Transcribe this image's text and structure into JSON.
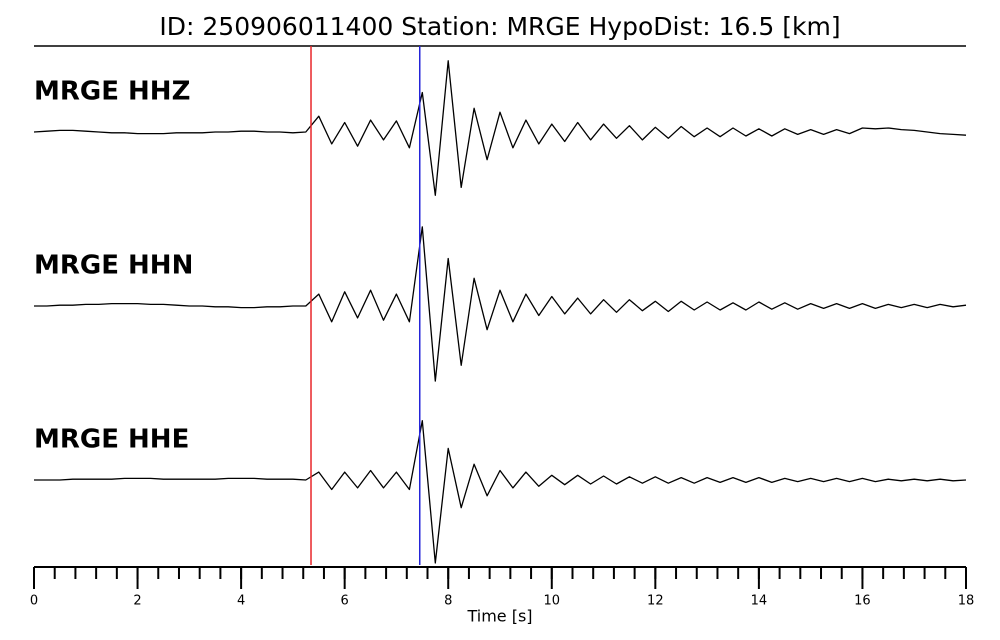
{
  "chart_data": {
    "type": "line",
    "title": "ID: 250906011400   Station: MRGE   HypoDist:    16.5 [km]",
    "xlabel": "Time [s]",
    "xlim": [
      0,
      18
    ],
    "xticks": [
      0,
      2,
      4,
      6,
      8,
      10,
      12,
      14,
      16,
      18
    ],
    "xminor": [
      0,
      0.4,
      0.8,
      1.2,
      1.6,
      2,
      2.4,
      2.8,
      3.2,
      3.6,
      4,
      4.4,
      4.8,
      5.2,
      5.6,
      6,
      6.4,
      6.8,
      7.2,
      7.6,
      8,
      8.4,
      8.8,
      9.2,
      9.6,
      10,
      10.4,
      10.8,
      11.2,
      11.6,
      12,
      12.4,
      12.8,
      13.2,
      13.6,
      14,
      14.4,
      14.8,
      15.2,
      15.6,
      16,
      16.4,
      16.8,
      17.2,
      17.6,
      18
    ],
    "ylim": [
      -1.1,
      1.1
    ],
    "vlines": [
      {
        "x": 5.35,
        "color": "#e8262a"
      },
      {
        "x": 7.45,
        "color": "#2424d8"
      }
    ],
    "label_color": "#4a9a00",
    "x": [
      0,
      0.25,
      0.5,
      0.75,
      1,
      1.25,
      1.5,
      1.75,
      2,
      2.25,
      2.5,
      2.75,
      3,
      3.25,
      3.5,
      3.75,
      4,
      4.25,
      4.5,
      4.75,
      5,
      5.25,
      5.5,
      5.75,
      6,
      6.25,
      6.5,
      6.75,
      7,
      7.25,
      7.5,
      7.75,
      8,
      8.25,
      8.5,
      8.75,
      9,
      9.25,
      9.5,
      9.75,
      10,
      10.25,
      10.5,
      10.75,
      11,
      11.25,
      11.5,
      11.75,
      12,
      12.25,
      12.5,
      12.75,
      13,
      13.25,
      13.5,
      13.75,
      14,
      14.25,
      14.5,
      14.75,
      15,
      15.25,
      15.5,
      15.75,
      16,
      16.25,
      16.5,
      16.75,
      17,
      17.25,
      17.5,
      17.75,
      18
    ],
    "series": [
      {
        "name": "MRGE HHZ",
        "color": "#000000",
        "values": [
          0,
          0.01,
          0.02,
          0.02,
          0.01,
          0,
          -0.01,
          -0.01,
          -0.02,
          -0.02,
          -0.02,
          -0.01,
          -0.01,
          -0.01,
          0,
          0,
          0.01,
          0.01,
          0,
          0,
          -0.01,
          0,
          0.2,
          -0.15,
          0.12,
          -0.18,
          0.15,
          -0.1,
          0.14,
          -0.2,
          0.5,
          -0.8,
          0.9,
          -0.7,
          0.3,
          -0.35,
          0.25,
          -0.2,
          0.15,
          -0.15,
          0.1,
          -0.12,
          0.12,
          -0.1,
          0.1,
          -0.08,
          0.08,
          -0.1,
          0.06,
          -0.08,
          0.07,
          -0.06,
          0.05,
          -0.06,
          0.05,
          -0.05,
          0.04,
          -0.05,
          0.04,
          -0.03,
          0.03,
          -0.03,
          0.03,
          -0.02,
          0.05,
          0.04,
          0.05,
          0.03,
          0.02,
          0,
          -0.02,
          -0.03,
          -0.04
        ]
      },
      {
        "name": "MRGE HHN",
        "color": "#000000",
        "values": [
          0,
          0,
          0.01,
          0.01,
          0.02,
          0.02,
          0.03,
          0.03,
          0.03,
          0.02,
          0.02,
          0.01,
          0,
          0,
          -0.01,
          -0.01,
          -0.02,
          -0.02,
          -0.01,
          -0.01,
          0,
          0,
          0.15,
          -0.2,
          0.18,
          -0.15,
          0.2,
          -0.18,
          0.15,
          -0.2,
          1.0,
          -0.95,
          0.6,
          -0.75,
          0.35,
          -0.3,
          0.2,
          -0.2,
          0.15,
          -0.12,
          0.12,
          -0.1,
          0.1,
          -0.1,
          0.08,
          -0.08,
          0.08,
          -0.06,
          0.06,
          -0.07,
          0.06,
          -0.05,
          0.05,
          -0.05,
          0.04,
          -0.05,
          0.05,
          -0.04,
          0.04,
          -0.04,
          0.03,
          -0.03,
          0.03,
          -0.03,
          0.03,
          -0.03,
          0.02,
          -0.02,
          0.02,
          -0.02,
          0.02,
          -0.01,
          0.01
        ]
      },
      {
        "name": "MRGE HHE",
        "color": "#000000",
        "values": [
          0,
          0,
          0,
          0.01,
          0.01,
          0.01,
          0.01,
          0.02,
          0.02,
          0.02,
          0.01,
          0.01,
          0.01,
          0.01,
          0.01,
          0.02,
          0.02,
          0.02,
          0.01,
          0.01,
          0.01,
          0,
          0.1,
          -0.12,
          0.1,
          -0.1,
          0.12,
          -0.1,
          0.1,
          -0.12,
          0.75,
          -1.05,
          0.4,
          -0.35,
          0.2,
          -0.2,
          0.12,
          -0.1,
          0.1,
          -0.08,
          0.06,
          -0.06,
          0.06,
          -0.05,
          0.05,
          -0.05,
          0.04,
          -0.04,
          0.04,
          -0.04,
          0.03,
          -0.04,
          0.03,
          -0.03,
          0.03,
          -0.03,
          0.03,
          -0.03,
          0.02,
          -0.02,
          0.02,
          -0.02,
          0.02,
          -0.02,
          0.02,
          -0.02,
          0.01,
          -0.01,
          0.01,
          -0.01,
          0.01,
          -0.01,
          0
        ]
      }
    ]
  }
}
